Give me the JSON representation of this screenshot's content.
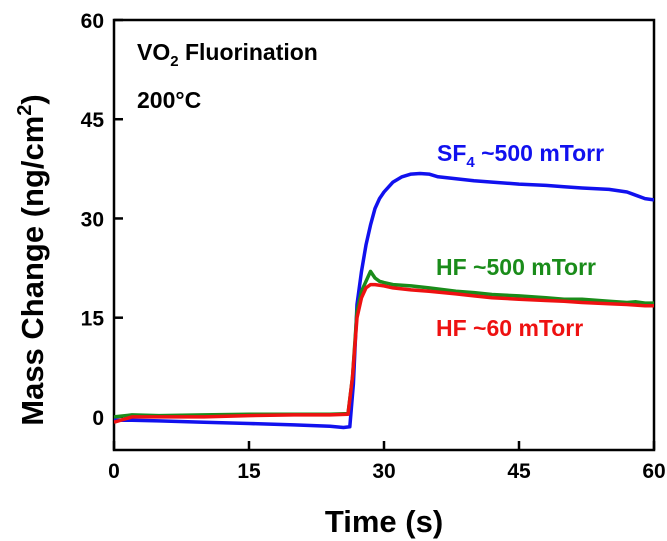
{
  "chart_data": {
    "type": "line",
    "title_line1": "VO",
    "title_sub": "2",
    "title_line1_rest": " Fluorination",
    "title_line2": "200°C",
    "xlabel": "Time (s)",
    "ylabel_main": "Mass Change (ng/cm",
    "ylabel_sup": "2",
    "ylabel_close": ")",
    "xlim": [
      0,
      60
    ],
    "ylim": [
      -5,
      60
    ],
    "xticks": [
      0,
      15,
      30,
      45,
      60
    ],
    "yticks": [
      0,
      15,
      30,
      45,
      60
    ],
    "xtick_labels": [
      "0",
      "15",
      "30",
      "45",
      "60"
    ],
    "ytick_labels": [
      "0",
      "15",
      "30",
      "45",
      "60"
    ],
    "grid": false,
    "series": [
      {
        "name": "SF4 ~500 mTorr",
        "color": "#1111ee",
        "x": [
          0,
          2,
          5,
          10,
          15,
          20,
          24,
          25.5,
          26.2,
          26.6,
          27,
          27.5,
          28,
          28.5,
          29,
          29.5,
          30,
          31,
          32,
          33,
          34,
          35,
          36,
          38,
          40,
          42,
          45,
          48,
          50,
          52,
          55,
          57,
          58,
          59,
          60
        ],
        "y": [
          -0.5,
          -0.5,
          -0.6,
          -0.8,
          -1.0,
          -1.2,
          -1.4,
          -1.6,
          -1.5,
          5,
          17,
          22,
          26,
          29,
          31.5,
          33,
          34,
          35.5,
          36.3,
          36.7,
          36.8,
          36.7,
          36.3,
          36,
          35.7,
          35.5,
          35.2,
          35,
          34.8,
          34.6,
          34.4,
          34,
          33.5,
          33,
          32.8
        ]
      },
      {
        "name": "HF ~500 mTorr",
        "color": "#1a8c1a",
        "x": [
          0,
          2,
          5,
          10,
          15,
          20,
          24,
          26,
          26.5,
          27,
          27.5,
          28,
          28.5,
          29,
          29.5,
          30,
          31,
          33,
          35,
          38,
          40,
          42,
          45,
          48,
          50,
          52,
          55,
          57,
          58,
          59,
          60
        ],
        "y": [
          0,
          0.3,
          0.2,
          0.3,
          0.4,
          0.4,
          0.4,
          0.5,
          6,
          16,
          19,
          20.5,
          22,
          21,
          20.5,
          20.3,
          20,
          19.8,
          19.5,
          19,
          18.8,
          18.5,
          18.3,
          18,
          17.8,
          17.8,
          17.5,
          17.3,
          17.4,
          17.2,
          17.2
        ]
      },
      {
        "name": "HF ~60 mTorr",
        "color": "#ee1111",
        "x": [
          0,
          2,
          5,
          10,
          15,
          20,
          24,
          26,
          26.5,
          27,
          27.5,
          28,
          28.5,
          29,
          30,
          31,
          33,
          35,
          38,
          40,
          42,
          45,
          48,
          50,
          52,
          55,
          57,
          58,
          59,
          60
        ],
        "y": [
          -0.8,
          0,
          0,
          0,
          0.2,
          0.3,
          0.3,
          0.4,
          6,
          15,
          18,
          19.5,
          20,
          20,
          19.8,
          19.5,
          19.2,
          19,
          18.6,
          18.3,
          18,
          17.8,
          17.6,
          17.5,
          17.3,
          17.1,
          17,
          16.9,
          16.8,
          16.8
        ]
      }
    ],
    "annotations": [
      {
        "text": "SF",
        "sub": "4",
        "rest": " ~500 mTorr",
        "color": "#1111ee"
      },
      {
        "text": "HF ~500 mTorr",
        "color": "#1a8c1a"
      },
      {
        "text": "HF ~60 mTorr",
        "color": "#ee1111"
      }
    ]
  }
}
